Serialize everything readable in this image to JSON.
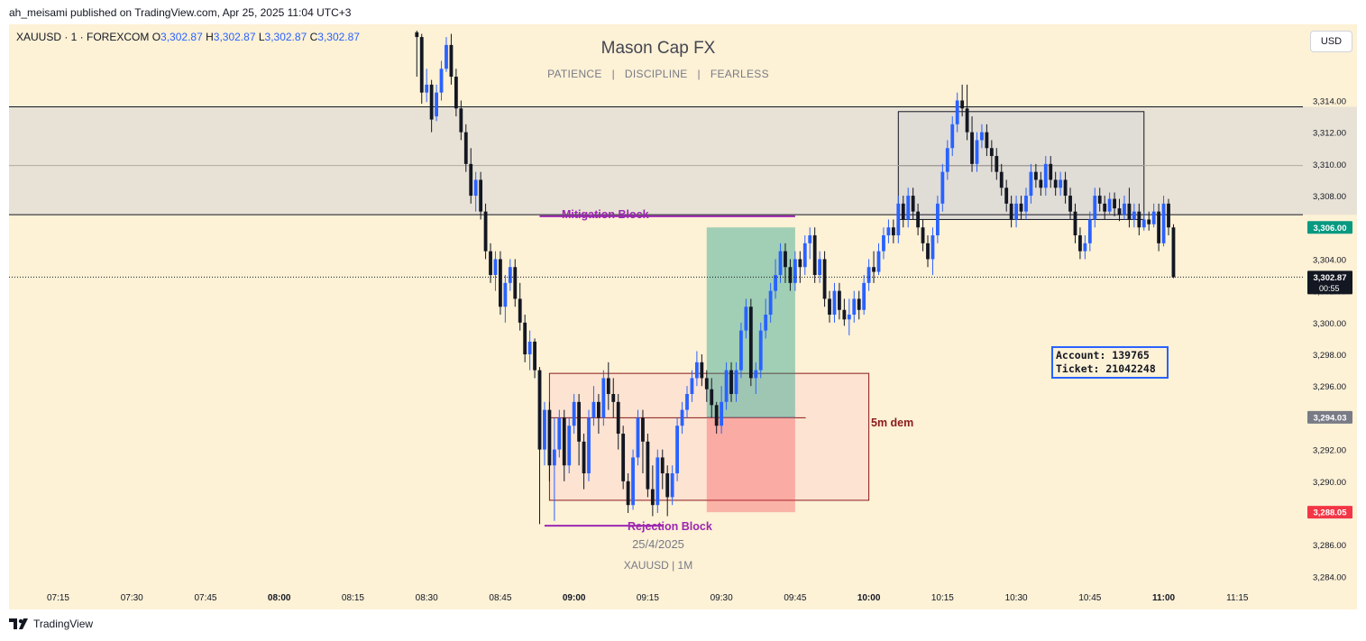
{
  "publisher_line": "ah_meisami published on TradingView.com, Apr 25, 2025 11:04 UTC+3",
  "legend": {
    "symbol": "XAUUSD · 1 · FOREXCOM",
    "o_label": "O",
    "o": "3,302.87",
    "h_label": "H",
    "h": "3,302.87",
    "l_label": "L",
    "l": "3,302.87",
    "c_label": "C",
    "c": "3,302.87"
  },
  "currency_button": "USD",
  "watermark": {
    "title": "Mason Cap FX",
    "subtitle": "PATIENCE   |   DISCIPLINE   |   FEARLESS",
    "date": "25/4/2025",
    "symbol": "XAUUSD | 1M"
  },
  "annotations": {
    "mitigation_block": "Mitigation Block",
    "rejection_block": "Rejection Block",
    "demand": "5m dem",
    "account_line": "Account: 139765",
    "ticket_line": "Ticket: 21042248"
  },
  "price_tags": {
    "take_profit": "3,306.00",
    "current": "3,302.87",
    "countdown": "00:55",
    "entry": "3,294.03",
    "stop_loss": "3,288.05"
  },
  "colors": {
    "up": "#2962ff",
    "down": "#131722",
    "background": "#fdf1d6",
    "tp_tag": "#089981",
    "sl_tag": "#f23645",
    "entry_tag": "#787b86",
    "zone_border": "#8b1a1a",
    "label_purple": "#9c27b0",
    "label_dark_red": "#8b1a1a"
  },
  "footer_brand": "TradingView",
  "chart_data": {
    "type": "candlestick",
    "y_ticks": [
      "3,314.00",
      "3,312.00",
      "3,310.00",
      "3,308.00",
      "3,306.00",
      "3,304.00",
      "3,302.00",
      "3,300.00",
      "3,298.00",
      "3,296.00",
      "3,294.00",
      "3,292.00",
      "3,290.00",
      "3,288.00",
      "3,286.00",
      "3,284.00"
    ],
    "x_ticks": [
      "07:15",
      "07:30",
      "07:45",
      "08:00",
      "08:15",
      "08:30",
      "08:45",
      "09:00",
      "09:15",
      "09:30",
      "09:45",
      "10:00",
      "10:15",
      "10:30",
      "10:45",
      "11:00",
      "11:15"
    ],
    "ylim": [
      3283.0,
      3318.8
    ],
    "xlim": [
      "07:05",
      "11:21"
    ],
    "time_start": "08:28",
    "time_step_minutes": 1,
    "candles": [
      [
        3318.3,
        3318.0,
        3318.4,
        3315.5
      ],
      [
        3318.0,
        3314.5,
        3318.2,
        3313.8
      ],
      [
        3314.5,
        3315.0,
        3316.0,
        3313.9
      ],
      [
        3315.0,
        3312.8,
        3315.3,
        3312.0
      ],
      [
        3313.0,
        3314.5,
        3315.0,
        3312.7
      ],
      [
        3314.5,
        3316.0,
        3316.5,
        3314.0
      ],
      [
        3316.0,
        3317.5,
        3318.0,
        3315.8
      ],
      [
        3317.5,
        3315.5,
        3318.2,
        3315.0
      ],
      [
        3315.5,
        3313.5,
        3316.0,
        3313.0
      ],
      [
        3313.5,
        3312.0,
        3314.0,
        3311.5
      ],
      [
        3312.0,
        3310.0,
        3312.5,
        3309.5
      ],
      [
        3310.0,
        3308.0,
        3311.0,
        3307.5
      ],
      [
        3308.0,
        3309.0,
        3309.5,
        3307.0
      ],
      [
        3309.0,
        3307.0,
        3309.5,
        3306.5
      ],
      [
        3307.0,
        3304.5,
        3307.5,
        3304.0
      ],
      [
        3304.5,
        3303.0,
        3305.0,
        3302.5
      ],
      [
        3303.0,
        3304.0,
        3304.5,
        3302.0
      ],
      [
        3304.0,
        3301.0,
        3304.5,
        3300.5
      ],
      [
        3301.0,
        3302.5,
        3303.0,
        3300.0
      ],
      [
        3302.5,
        3303.5,
        3304.0,
        3302.0
      ],
      [
        3303.5,
        3301.5,
        3304.0,
        3301.0
      ],
      [
        3301.5,
        3300.0,
        3302.5,
        3299.5
      ],
      [
        3300.0,
        3298.0,
        3300.5,
        3297.5
      ],
      [
        3298.0,
        3298.8,
        3299.5,
        3297.0
      ],
      [
        3298.8,
        3297.0,
        3299.0,
        3296.5
      ],
      [
        3297.0,
        3292.0,
        3297.2,
        3287.3
      ],
      [
        3292.0,
        3294.5,
        3295.0,
        3291.0
      ],
      [
        3294.5,
        3291.0,
        3295.0,
        3290.0
      ],
      [
        3291.0,
        3292.0,
        3294.0,
        3287.5
      ],
      [
        3292.0,
        3294.0,
        3294.5,
        3291.5
      ],
      [
        3294.0,
        3291.0,
        3294.5,
        3290.0
      ],
      [
        3291.0,
        3293.5,
        3294.0,
        3290.5
      ],
      [
        3293.5,
        3295.0,
        3295.5,
        3293.0
      ],
      [
        3295.0,
        3292.5,
        3295.5,
        3291.0
      ],
      [
        3292.5,
        3290.5,
        3293.0,
        3289.5
      ],
      [
        3290.5,
        3294.0,
        3294.5,
        3290.0
      ],
      [
        3294.0,
        3295.0,
        3296.0,
        3293.5
      ],
      [
        3295.0,
        3294.0,
        3295.5,
        3293.0
      ],
      [
        3294.0,
        3296.5,
        3297.0,
        3293.5
      ],
      [
        3296.5,
        3295.5,
        3297.5,
        3294.5
      ],
      [
        3295.5,
        3295.0,
        3296.5,
        3294.0
      ],
      [
        3295.0,
        3293.0,
        3295.5,
        3292.0
      ],
      [
        3293.0,
        3290.0,
        3293.5,
        3289.5
      ],
      [
        3290.0,
        3288.5,
        3290.5,
        3288.0
      ],
      [
        3288.5,
        3291.5,
        3292.0,
        3288.2
      ],
      [
        3291.5,
        3294.0,
        3294.5,
        3291.0
      ],
      [
        3294.0,
        3292.5,
        3294.5,
        3290.5
      ],
      [
        3292.5,
        3289.5,
        3293.0,
        3289.0
      ],
      [
        3289.5,
        3288.5,
        3291.0,
        3287.8
      ],
      [
        3288.5,
        3291.5,
        3292.0,
        3288.0
      ],
      [
        3291.5,
        3290.5,
        3292.0,
        3289.5
      ],
      [
        3290.5,
        3289.0,
        3291.0,
        3287.8
      ],
      [
        3289.0,
        3290.5,
        3291.0,
        3288.5
      ],
      [
        3290.5,
        3293.5,
        3294.0,
        3290.0
      ],
      [
        3293.5,
        3294.5,
        3295.0,
        3293.0
      ],
      [
        3294.5,
        3295.5,
        3296.0,
        3294.0
      ],
      [
        3295.5,
        3296.5,
        3297.0,
        3295.0
      ],
      [
        3296.5,
        3297.5,
        3298.2,
        3296.0
      ],
      [
        3297.5,
        3296.5,
        3298.0,
        3296.0
      ],
      [
        3296.5,
        3295.8,
        3297.0,
        3295.0
      ],
      [
        3295.8,
        3294.8,
        3296.5,
        3294.0
      ],
      [
        3294.8,
        3293.5,
        3295.0,
        3293.0
      ],
      [
        3293.5,
        3295.0,
        3296.0,
        3293.0
      ],
      [
        3295.0,
        3297.0,
        3297.5,
        3294.5
      ],
      [
        3297.0,
        3295.5,
        3297.5,
        3295.0
      ],
      [
        3295.5,
        3297.0,
        3297.5,
        3295.0
      ],
      [
        3297.0,
        3299.5,
        3300.0,
        3296.5
      ],
      [
        3299.5,
        3301.0,
        3301.5,
        3299.0
      ],
      [
        3301.0,
        3296.5,
        3301.5,
        3296.0
      ],
      [
        3296.5,
        3297.0,
        3297.5,
        3295.5
      ],
      [
        3297.0,
        3299.5,
        3300.0,
        3296.5
      ],
      [
        3299.5,
        3300.5,
        3301.5,
        3299.0
      ],
      [
        3300.5,
        3302.0,
        3302.5,
        3300.0
      ],
      [
        3302.0,
        3303.0,
        3304.0,
        3301.5
      ],
      [
        3303.0,
        3304.5,
        3305.0,
        3302.5
      ],
      [
        3304.5,
        3303.5,
        3305.0,
        3302.5
      ],
      [
        3303.5,
        3302.5,
        3304.0,
        3302.0
      ],
      [
        3302.5,
        3304.0,
        3304.5,
        3302.0
      ],
      [
        3304.0,
        3303.5,
        3304.5,
        3302.5
      ],
      [
        3303.5,
        3305.0,
        3305.5,
        3303.0
      ],
      [
        3305.0,
        3305.5,
        3306.0,
        3304.0
      ],
      [
        3305.5,
        3303.0,
        3306.0,
        3302.5
      ],
      [
        3303.0,
        3304.0,
        3304.5,
        3302.5
      ],
      [
        3304.0,
        3301.5,
        3304.5,
        3301.0
      ],
      [
        3301.5,
        3300.5,
        3302.0,
        3300.0
      ],
      [
        3300.5,
        3302.0,
        3302.5,
        3300.0
      ],
      [
        3302.0,
        3300.8,
        3302.5,
        3300.2
      ],
      [
        3300.8,
        3300.2,
        3301.5,
        3299.8
      ],
      [
        3300.2,
        3300.5,
        3301.5,
        3299.2
      ],
      [
        3300.5,
        3301.5,
        3302.0,
        3300.0
      ],
      [
        3301.5,
        3300.8,
        3302.0,
        3300.2
      ],
      [
        3300.8,
        3302.5,
        3303.0,
        3300.5
      ],
      [
        3302.5,
        3303.5,
        3304.0,
        3302.0
      ],
      [
        3303.5,
        3303.2,
        3304.5,
        3302.5
      ],
      [
        3303.2,
        3304.5,
        3305.0,
        3303.0
      ],
      [
        3304.5,
        3305.5,
        3306.0,
        3304.0
      ],
      [
        3305.5,
        3306.0,
        3306.5,
        3305.0
      ],
      [
        3306.0,
        3305.5,
        3306.5,
        3305.0
      ],
      [
        3305.5,
        3307.5,
        3308.0,
        3305.0
      ],
      [
        3307.5,
        3306.5,
        3308.0,
        3306.0
      ],
      [
        3306.5,
        3308.0,
        3308.5,
        3306.0
      ],
      [
        3308.0,
        3307.0,
        3308.5,
        3306.5
      ],
      [
        3307.0,
        3306.0,
        3307.5,
        3305.5
      ],
      [
        3306.0,
        3305.0,
        3306.5,
        3304.5
      ],
      [
        3305.0,
        3304.0,
        3305.5,
        3303.5
      ],
      [
        3304.0,
        3305.5,
        3306.0,
        3303.0
      ],
      [
        3305.5,
        3307.5,
        3308.0,
        3305.0
      ],
      [
        3307.5,
        3309.5,
        3310.0,
        3307.0
      ],
      [
        3309.5,
        3311.0,
        3311.5,
        3309.0
      ],
      [
        3311.0,
        3312.5,
        3313.0,
        3310.5
      ],
      [
        3312.5,
        3314.0,
        3314.5,
        3312.0
      ],
      [
        3314.0,
        3313.5,
        3315.0,
        3313.0
      ],
      [
        3313.5,
        3312.0,
        3315.0,
        3311.5
      ],
      [
        3312.0,
        3310.0,
        3313.0,
        3309.5
      ],
      [
        3310.0,
        3311.5,
        3312.0,
        3309.5
      ],
      [
        3311.5,
        3312.0,
        3312.5,
        3311.0
      ],
      [
        3312.0,
        3311.0,
        3312.5,
        3310.5
      ],
      [
        3311.0,
        3310.5,
        3311.5,
        3309.5
      ],
      [
        3310.5,
        3309.5,
        3311.0,
        3309.0
      ],
      [
        3309.5,
        3308.5,
        3310.0,
        3308.0
      ],
      [
        3308.5,
        3307.5,
        3309.0,
        3307.0
      ],
      [
        3307.5,
        3306.5,
        3308.0,
        3306.0
      ],
      [
        3306.5,
        3307.5,
        3308.0,
        3306.0
      ],
      [
        3307.5,
        3307.0,
        3308.0,
        3306.5
      ],
      [
        3307.0,
        3308.0,
        3308.5,
        3306.5
      ],
      [
        3308.0,
        3309.5,
        3310.0,
        3307.5
      ],
      [
        3309.5,
        3309.0,
        3310.0,
        3308.5
      ],
      [
        3309.0,
        3308.5,
        3309.5,
        3308.0
      ],
      [
        3308.5,
        3310.0,
        3310.5,
        3308.0
      ],
      [
        3310.0,
        3309.0,
        3310.5,
        3308.5
      ],
      [
        3309.0,
        3308.5,
        3309.5,
        3308.0
      ],
      [
        3308.5,
        3309.0,
        3309.5,
        3308.0
      ],
      [
        3309.0,
        3308.0,
        3309.5,
        3307.5
      ],
      [
        3308.0,
        3307.0,
        3308.5,
        3306.5
      ],
      [
        3307.0,
        3305.5,
        3307.5,
        3305.0
      ],
      [
        3305.5,
        3304.5,
        3306.0,
        3304.0
      ],
      [
        3304.5,
        3305.0,
        3305.5,
        3304.0
      ],
      [
        3305.0,
        3306.5,
        3307.0,
        3304.5
      ],
      [
        3306.5,
        3308.0,
        3308.5,
        3306.0
      ],
      [
        3308.0,
        3307.5,
        3308.5,
        3307.0
      ],
      [
        3307.5,
        3307.0,
        3308.0,
        3306.5
      ],
      [
        3307.0,
        3307.8,
        3308.2,
        3306.8
      ],
      [
        3307.8,
        3307.2,
        3308.2,
        3306.7
      ],
      [
        3307.2,
        3306.8,
        3307.8,
        3306.4
      ],
      [
        3306.8,
        3307.5,
        3308.0,
        3306.5
      ],
      [
        3307.5,
        3306.5,
        3308.5,
        3306.0
      ],
      [
        3306.5,
        3307.0,
        3307.5,
        3306.0
      ],
      [
        3307.0,
        3306.0,
        3307.5,
        3305.5
      ],
      [
        3306.0,
        3306.5,
        3307.0,
        3305.8
      ],
      [
        3306.5,
        3306.2,
        3307.0,
        3305.8
      ],
      [
        3306.2,
        3307.0,
        3307.5,
        3306.0
      ],
      [
        3307.0,
        3305.0,
        3307.5,
        3304.5
      ],
      [
        3305.0,
        3307.5,
        3308.0,
        3304.8
      ],
      [
        3307.5,
        3306.0,
        3307.8,
        3305.5
      ],
      [
        3306.0,
        3302.87,
        3306.2,
        3302.8
      ]
    ],
    "zones": [
      {
        "type": "supply",
        "y_top": 3313.6,
        "y_bottom": 3306.8
      },
      {
        "type": "supply-box",
        "x_from": "10:06",
        "x_to": "10:56",
        "y_top": 3313.3,
        "y_bottom": 3306.5,
        "midline": 3309.9
      },
      {
        "type": "demand",
        "label": "5m dem",
        "x_from": "08:55",
        "x_to": "10:00",
        "y_top": 3296.8,
        "y_bottom": 3288.8,
        "midline": 3294.0
      }
    ],
    "position": {
      "type": "long",
      "x_from": "09:27",
      "x_to": "09:45",
      "take_profit": 3306.0,
      "entry": 3294.03,
      "stop_loss": 3288.05
    },
    "hlines": [
      3313.6,
      3309.9,
      3306.8
    ],
    "current_price": 3302.87
  }
}
